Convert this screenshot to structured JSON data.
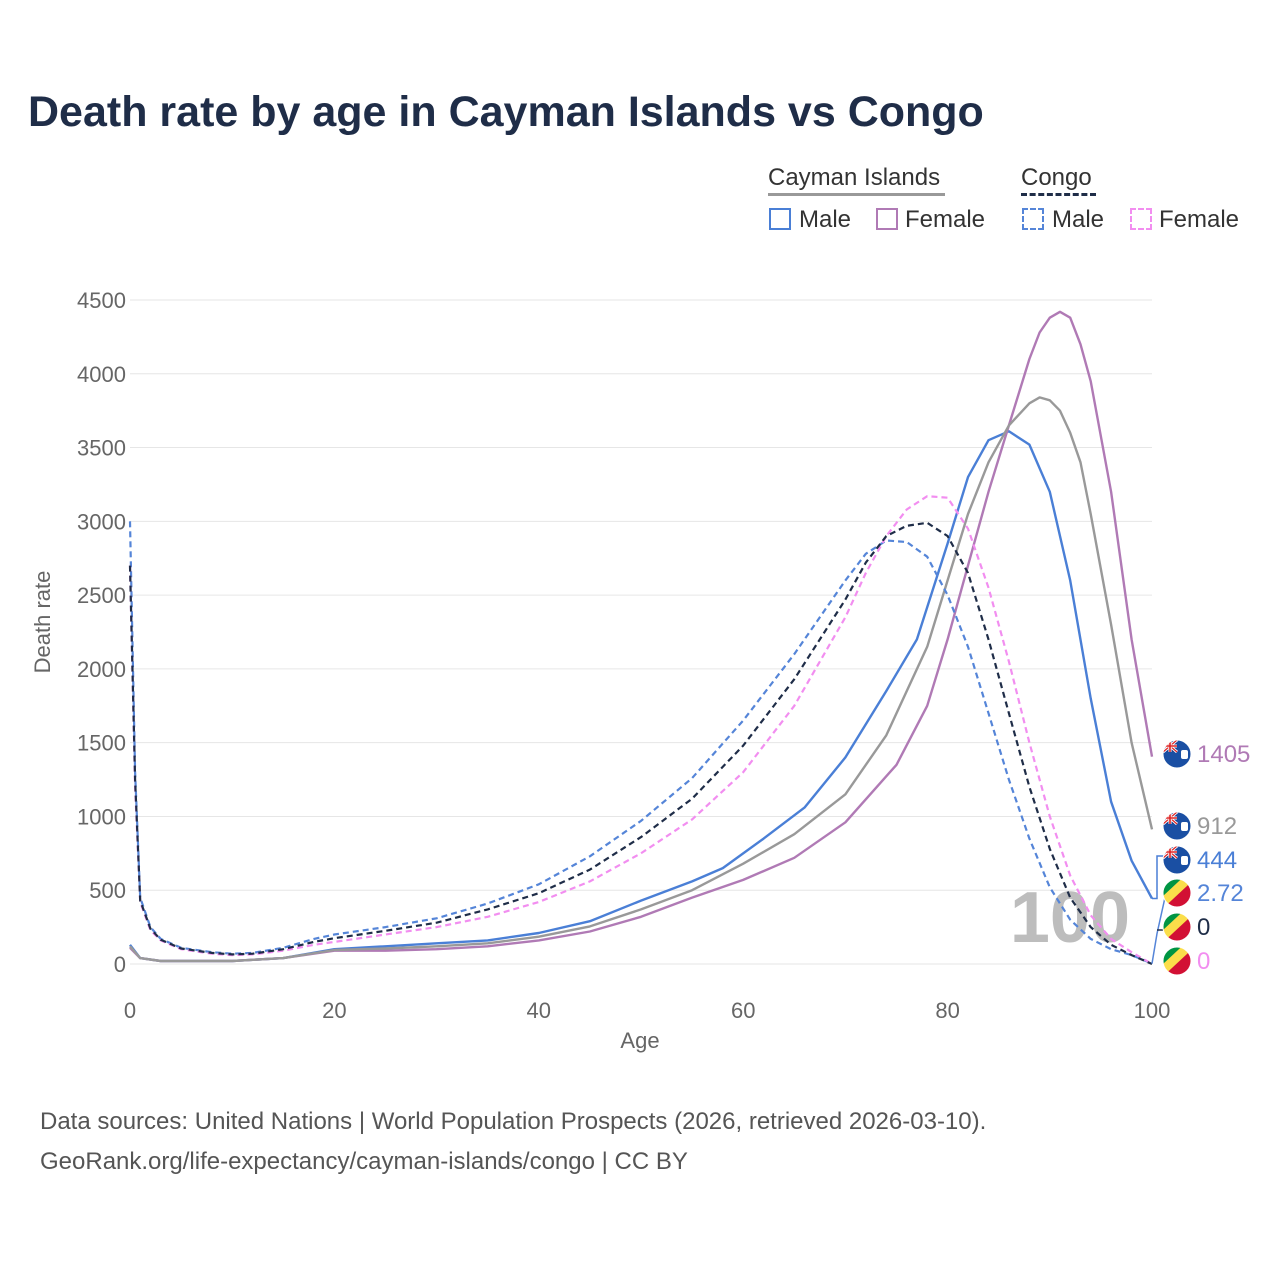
{
  "title": "Death rate by age in Cayman Islands vs Congo",
  "legend": {
    "groups": [
      {
        "name": "Cayman Islands",
        "items": [
          "Male",
          "Female"
        ]
      },
      {
        "name": "Congo",
        "items": [
          "Male",
          "Female"
        ]
      }
    ]
  },
  "source": {
    "line1": "Data sources: United Nations | World Population Prospects (2026, retrieved 2026-03-10).",
    "line2": "GeoRank.org/life-expectancy/cayman-islands/congo | CC BY"
  },
  "colors": {
    "cayman_male": "#4a7fd6",
    "cayman_female": "#b07ab5",
    "cayman_total": "#999999",
    "congo_male": "#5585d8",
    "congo_female": "#f28ef0",
    "congo_total": "#1f2d48",
    "grid": "#e6e6e6",
    "axis_text": "#666666"
  },
  "chart_data": {
    "type": "line",
    "xlabel": "Age",
    "ylabel": "Death rate",
    "xlim": [
      0,
      100
    ],
    "ylim": [
      0,
      4500
    ],
    "xticks": [
      0,
      20,
      40,
      60,
      80,
      100
    ],
    "yticks": [
      0,
      500,
      1000,
      1500,
      2000,
      2500,
      3000,
      3500,
      4000,
      4500
    ],
    "age_marker": "100",
    "series": [
      {
        "name": "Cayman Islands Male",
        "key": "cayman_male",
        "dash": false,
        "x": [
          0,
          1,
          3,
          5,
          10,
          15,
          20,
          25,
          30,
          35,
          40,
          45,
          50,
          55,
          58,
          62,
          66,
          70,
          74,
          77,
          80,
          82,
          84,
          86,
          88,
          90,
          92,
          94,
          96,
          98,
          100
        ],
        "y": [
          130,
          40,
          20,
          20,
          20,
          40,
          100,
          120,
          140,
          160,
          210,
          290,
          430,
          560,
          650,
          850,
          1060,
          1400,
          1850,
          2200,
          2850,
          3300,
          3550,
          3610,
          3520,
          3200,
          2600,
          1800,
          1100,
          700,
          444
        ]
      },
      {
        "name": "Cayman Islands Female",
        "key": "cayman_female",
        "dash": false,
        "x": [
          0,
          1,
          3,
          5,
          10,
          15,
          20,
          25,
          30,
          35,
          40,
          45,
          50,
          55,
          60,
          65,
          70,
          75,
          78,
          80,
          82,
          84,
          86,
          88,
          89,
          90,
          91,
          92,
          93,
          94,
          96,
          98,
          100
        ],
        "y": [
          110,
          40,
          20,
          20,
          20,
          40,
          90,
          90,
          100,
          120,
          160,
          220,
          320,
          450,
          570,
          720,
          960,
          1350,
          1750,
          2200,
          2700,
          3200,
          3650,
          4100,
          4280,
          4380,
          4420,
          4380,
          4200,
          3950,
          3200,
          2200,
          1405
        ]
      },
      {
        "name": "Cayman Islands Total",
        "key": "cayman_total",
        "dash": false,
        "x": [
          0,
          1,
          3,
          5,
          10,
          15,
          20,
          25,
          30,
          35,
          40,
          45,
          50,
          55,
          60,
          65,
          70,
          74,
          78,
          80,
          82,
          84,
          86,
          88,
          89,
          90,
          91,
          92,
          93,
          94,
          96,
          98,
          100
        ],
        "y": [
          120,
          40,
          20,
          20,
          20,
          40,
          95,
          105,
          120,
          140,
          185,
          255,
          370,
          500,
          680,
          880,
          1150,
          1550,
          2150,
          2600,
          3050,
          3400,
          3650,
          3800,
          3840,
          3820,
          3750,
          3600,
          3400,
          3050,
          2300,
          1500,
          912
        ]
      },
      {
        "name": "Congo Male",
        "key": "congo_male",
        "dash": true,
        "x": [
          0,
          0.5,
          1,
          2,
          3,
          5,
          8,
          10,
          12,
          15,
          18,
          20,
          25,
          30,
          35,
          40,
          45,
          50,
          55,
          60,
          65,
          70,
          72,
          74,
          76,
          78,
          80,
          82,
          84,
          86,
          88,
          90,
          92,
          94,
          96,
          98,
          100
        ],
        "y": [
          3000,
          1300,
          450,
          250,
          170,
          110,
          80,
          70,
          75,
          110,
          170,
          200,
          250,
          310,
          410,
          540,
          730,
          970,
          1260,
          1650,
          2100,
          2600,
          2780,
          2870,
          2860,
          2760,
          2500,
          2150,
          1700,
          1250,
          850,
          520,
          300,
          170,
          100,
          60,
          2.72
        ]
      },
      {
        "name": "Congo Female",
        "key": "congo_female",
        "dash": true,
        "x": [
          0,
          0.5,
          1,
          2,
          3,
          5,
          8,
          10,
          12,
          15,
          18,
          20,
          25,
          30,
          35,
          40,
          45,
          50,
          55,
          60,
          65,
          70,
          72,
          74,
          76,
          78,
          80,
          82,
          84,
          86,
          88,
          90,
          92,
          94,
          96,
          98,
          100
        ],
        "y": [
          2700,
          1200,
          420,
          230,
          160,
          100,
          70,
          60,
          65,
          90,
          130,
          150,
          200,
          250,
          320,
          420,
          560,
          750,
          980,
          1300,
          1750,
          2350,
          2650,
          2900,
          3080,
          3170,
          3160,
          2950,
          2550,
          2050,
          1500,
          1000,
          600,
          330,
          170,
          80,
          0
        ]
      },
      {
        "name": "Congo Total",
        "key": "congo_total",
        "dash": true,
        "x": [
          0,
          0.5,
          1,
          2,
          3,
          5,
          8,
          10,
          12,
          15,
          18,
          20,
          25,
          30,
          35,
          40,
          45,
          50,
          55,
          60,
          65,
          70,
          72,
          74,
          76,
          78,
          80,
          82,
          84,
          86,
          88,
          90,
          92,
          94,
          96,
          98,
          100
        ],
        "y": [
          2700,
          1250,
          430,
          240,
          165,
          105,
          75,
          65,
          70,
          100,
          150,
          175,
          225,
          280,
          370,
          480,
          640,
          860,
          1120,
          1480,
          1930,
          2470,
          2720,
          2900,
          2970,
          2990,
          2900,
          2650,
          2200,
          1700,
          1200,
          780,
          450,
          250,
          130,
          60,
          0
        ]
      }
    ],
    "end_labels": [
      {
        "text": "1405",
        "key": "cayman_female",
        "flag": "cayman",
        "value": 1405
      },
      {
        "text": "912",
        "key": "cayman_total",
        "flag": "cayman",
        "value": 912
      },
      {
        "text": "444",
        "key": "cayman_male",
        "flag": "cayman",
        "value": 444
      },
      {
        "text": "2.72",
        "key": "congo_male",
        "flag": "congo",
        "value": 2.72
      },
      {
        "text": "0",
        "key": "congo_total",
        "flag": "congo",
        "value": 0
      },
      {
        "text": "0",
        "key": "congo_female",
        "flag": "congo",
        "value": 0
      }
    ]
  }
}
